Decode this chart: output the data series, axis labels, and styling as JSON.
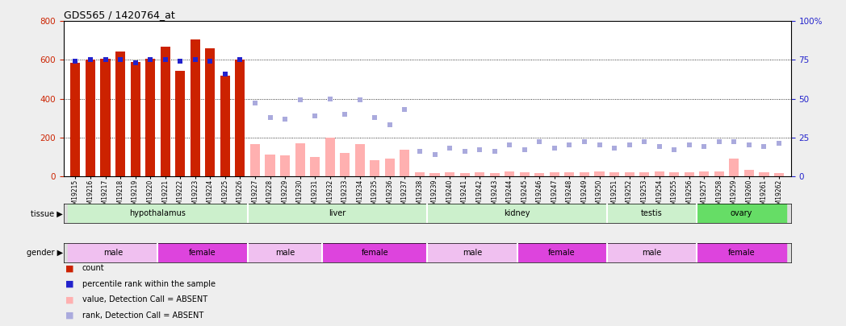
{
  "title": "GDS565 / 1420764_at",
  "samples": [
    "GSM19215",
    "GSM19216",
    "GSM19217",
    "GSM19218",
    "GSM19219",
    "GSM19220",
    "GSM19221",
    "GSM19222",
    "GSM19223",
    "GSM19224",
    "GSM19225",
    "GSM19226",
    "GSM19227",
    "GSM19228",
    "GSM19229",
    "GSM19230",
    "GSM19231",
    "GSM19232",
    "GSM19233",
    "GSM19234",
    "GSM19235",
    "GSM19236",
    "GSM19237",
    "GSM19238",
    "GSM19239",
    "GSM19240",
    "GSM19241",
    "GSM19242",
    "GSM19243",
    "GSM19244",
    "GSM19245",
    "GSM19246",
    "GSM19247",
    "GSM19248",
    "GSM19249",
    "GSM19250",
    "GSM19251",
    "GSM19252",
    "GSM19253",
    "GSM19254",
    "GSM19255",
    "GSM19256",
    "GSM19257",
    "GSM19258",
    "GSM19259",
    "GSM19260",
    "GSM19261",
    "GSM19262"
  ],
  "bar_values": [
    585,
    600,
    605,
    645,
    590,
    605,
    670,
    545,
    705,
    660,
    520,
    600,
    165,
    110,
    105,
    170,
    100,
    200,
    120,
    165,
    80,
    90,
    135,
    20,
    15,
    20,
    15,
    20,
    15,
    25,
    20,
    15,
    20,
    18,
    20,
    22,
    20,
    18,
    20,
    25,
    18,
    20,
    25,
    22,
    90,
    30,
    18,
    15
  ],
  "bar_present": [
    true,
    true,
    true,
    true,
    true,
    true,
    true,
    true,
    true,
    true,
    true,
    true,
    false,
    false,
    false,
    false,
    false,
    false,
    false,
    false,
    false,
    false,
    false,
    false,
    false,
    false,
    false,
    false,
    false,
    false,
    false,
    false,
    false,
    false,
    false,
    false,
    false,
    false,
    false,
    false,
    false,
    false,
    false,
    false,
    false,
    false,
    false,
    false
  ],
  "rank_values": [
    74,
    75,
    75,
    75,
    73,
    75,
    75,
    74,
    75,
    74,
    66,
    75,
    47,
    38,
    37,
    49,
    39,
    50,
    40,
    49,
    38,
    33,
    43,
    16,
    14,
    18,
    16,
    17,
    16,
    20,
    17,
    22,
    18,
    20,
    22,
    20,
    18,
    20,
    22,
    19,
    17,
    20,
    19,
    22,
    22,
    20,
    19,
    21
  ],
  "rank_present": [
    true,
    true,
    true,
    true,
    true,
    true,
    true,
    true,
    true,
    true,
    true,
    true,
    false,
    false,
    false,
    false,
    false,
    false,
    false,
    false,
    false,
    false,
    false,
    false,
    false,
    false,
    false,
    false,
    false,
    false,
    false,
    false,
    false,
    false,
    false,
    false,
    false,
    false,
    false,
    false,
    false,
    false,
    false,
    false,
    false,
    false,
    false,
    false
  ],
  "tissues": [
    {
      "label": "hypothalamus",
      "start": 0,
      "end": 12,
      "color": "#ccf0cc"
    },
    {
      "label": "liver",
      "start": 12,
      "end": 24,
      "color": "#ccf0cc"
    },
    {
      "label": "kidney",
      "start": 24,
      "end": 36,
      "color": "#ccf0cc"
    },
    {
      "label": "testis",
      "start": 36,
      "end": 42,
      "color": "#ccf0cc"
    },
    {
      "label": "ovary",
      "start": 42,
      "end": 48,
      "color": "#66dd66"
    }
  ],
  "genders": [
    {
      "label": "male",
      "start": 0,
      "end": 6,
      "color": "#f0c0f0"
    },
    {
      "label": "female",
      "start": 6,
      "end": 12,
      "color": "#dd44dd"
    },
    {
      "label": "male",
      "start": 12,
      "end": 17,
      "color": "#f0c0f0"
    },
    {
      "label": "female",
      "start": 17,
      "end": 24,
      "color": "#dd44dd"
    },
    {
      "label": "male",
      "start": 24,
      "end": 30,
      "color": "#f0c0f0"
    },
    {
      "label": "female",
      "start": 30,
      "end": 36,
      "color": "#dd44dd"
    },
    {
      "label": "male",
      "start": 36,
      "end": 42,
      "color": "#f0c0f0"
    },
    {
      "label": "female",
      "start": 42,
      "end": 48,
      "color": "#dd44dd"
    }
  ],
  "ylim_left": [
    0,
    800
  ],
  "ylim_right": [
    0,
    100
  ],
  "yticks_left": [
    0,
    200,
    400,
    600,
    800
  ],
  "yticks_right": [
    0,
    25,
    50,
    75,
    100
  ],
  "bar_color_present": "#cc2200",
  "bar_color_absent": "#ffb0b0",
  "rank_color_present": "#2222cc",
  "rank_color_absent": "#aaaadd",
  "bg_color": "#eeeeee",
  "plot_bg": "#ffffff",
  "legend": [
    {
      "color": "#cc2200",
      "label": "count"
    },
    {
      "color": "#2222cc",
      "label": "percentile rank within the sample"
    },
    {
      "color": "#ffb0b0",
      "label": "value, Detection Call = ABSENT"
    },
    {
      "color": "#aaaadd",
      "label": "rank, Detection Call = ABSENT"
    }
  ]
}
